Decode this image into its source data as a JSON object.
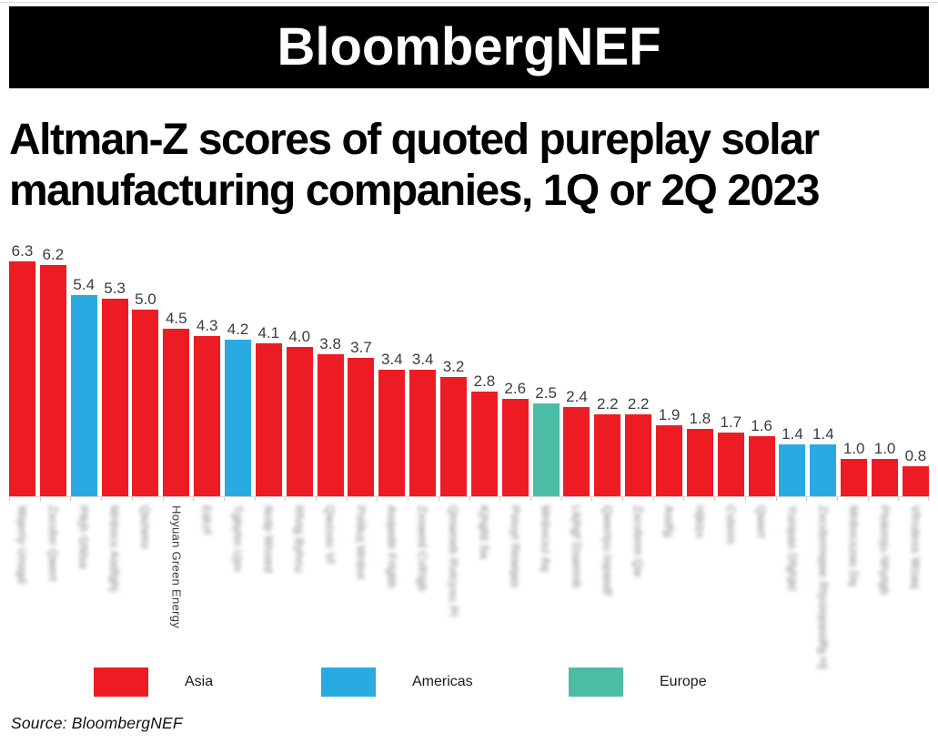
{
  "logo": {
    "text": "BloombergNEF"
  },
  "title": {
    "text": "Altman-Z scores of quoted pureplay solar\nmanufacturing companies, 1Q or 2Q 2023"
  },
  "source": {
    "text": "Source: BloombergNEF"
  },
  "legend": {
    "items": [
      {
        "label": "Asia",
        "region": "asia",
        "color": "#ED1C24"
      },
      {
        "label": "Americas",
        "region": "americas",
        "color": "#29ABE2"
      },
      {
        "label": "Europe",
        "region": "europe",
        "color": "#4DBCA7"
      }
    ]
  },
  "chart_data": {
    "type": "bar",
    "title": "Altman-Z scores of quoted pureplay solar manufacturing companies, 1Q or 2Q 2023",
    "xlabel": "",
    "ylabel": "",
    "ylim": [
      0,
      6.8
    ],
    "grid": false,
    "legend_position": "bottom",
    "value_labels_shown": true,
    "x_labels_rotated": true,
    "region_colors": {
      "asia": "#ED1C24",
      "americas": "#29ABE2",
      "europe": "#4DBCA7"
    },
    "bars": [
      {
        "value": 6.3,
        "region": "asia",
        "label": "Wqerty Unsgd",
        "label_blurred": true
      },
      {
        "value": 6.2,
        "region": "asia",
        "label": "Zxcvbn Qwert",
        "label_blurred": true
      },
      {
        "value": 5.4,
        "region": "americas",
        "label": "Plkjh Gfdsa",
        "label_blurred": true
      },
      {
        "value": 5.3,
        "region": "asia",
        "label": "Mnbvcx Asdfghj",
        "label_blurred": true
      },
      {
        "value": 5.0,
        "region": "asia",
        "label": "Qazwsx",
        "label_blurred": true
      },
      {
        "value": 4.5,
        "region": "asia",
        "label": "Hoyuan Green Energy",
        "label_blurred": false
      },
      {
        "value": 4.3,
        "region": "asia",
        "label": "Edcrf",
        "label_blurred": true
      },
      {
        "value": 4.2,
        "region": "americas",
        "label": "Tgbyhn Ujm",
        "label_blurred": true
      },
      {
        "value": 4.1,
        "region": "asia",
        "label": "Ikolp Wsxed",
        "label_blurred": true
      },
      {
        "value": 4.0,
        "region": "asia",
        "label": "Rfvtg Byhnu",
        "label_blurred": true
      },
      {
        "value": 3.8,
        "region": "asia",
        "label": "Qwzxsc Vf",
        "label_blurred": true
      },
      {
        "value": 3.7,
        "region": "asia",
        "label": "Polikuj Mnbvt",
        "label_blurred": true
      },
      {
        "value": 3.4,
        "region": "asia",
        "label": "Asqwde Frtgbh",
        "label_blurred": true
      },
      {
        "value": 3.4,
        "region": "asia",
        "label": "Zxswed Cvfrtgb",
        "label_blurred": true
      },
      {
        "value": 3.2,
        "region": "asia",
        "label": "Qmwneb Rvtcyxu Pl",
        "label_blurred": true
      },
      {
        "value": 2.8,
        "region": "asia",
        "label": "Kjhgfd Sa",
        "label_blurred": true
      },
      {
        "value": 2.6,
        "region": "asia",
        "label": "Poiuyt Rewqas",
        "label_blurred": true
      },
      {
        "value": 2.5,
        "region": "europe",
        "label": "Mnbvcxz Aq",
        "label_blurred": true
      },
      {
        "value": 2.4,
        "region": "asia",
        "label": "Lkjhgf Dsamnb",
        "label_blurred": true
      },
      {
        "value": 2.2,
        "region": "asia",
        "label": "Qwertyu Iopasdf",
        "label_blurred": true
      },
      {
        "value": 2.2,
        "region": "asia",
        "label": "Zxcvbnm Qw",
        "label_blurred": true
      },
      {
        "value": 1.9,
        "region": "asia",
        "label": "Asdfg",
        "label_blurred": true
      },
      {
        "value": 1.8,
        "region": "asia",
        "label": "Hjklzx",
        "label_blurred": true
      },
      {
        "value": 1.7,
        "region": "asia",
        "label": "Cvbnm",
        "label_blurred": true
      },
      {
        "value": 1.6,
        "region": "asia",
        "label": "Qwert",
        "label_blurred": true
      },
      {
        "value": 1.4,
        "region": "americas",
        "label": "Yuiopas Dfghjkl",
        "label_blurred": true
      },
      {
        "value": 1.4,
        "region": "americas",
        "label": "Zxcvbnmqwe Rtyuiopasdfg Hj",
        "label_blurred": true
      },
      {
        "value": 1.0,
        "region": "asia",
        "label": "Mnbvcxzas Dq",
        "label_blurred": true
      },
      {
        "value": 1.0,
        "region": "asia",
        "label": "Plokimju Nhytgb",
        "label_blurred": true
      },
      {
        "value": 0.8,
        "region": "asia",
        "label": "Vfrcdexs Wzaq",
        "label_blurred": true
      }
    ]
  }
}
